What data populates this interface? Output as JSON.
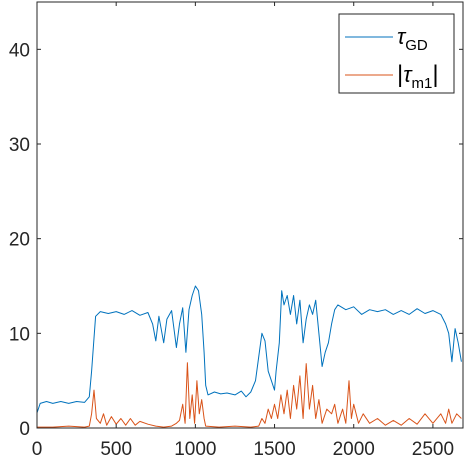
{
  "chart_data": {
    "type": "line",
    "xlim": [
      0,
      2690
    ],
    "ylim": [
      0,
      45
    ],
    "x_ticks": [
      "0",
      "500",
      "1000",
      "1500",
      "2000",
      "2500"
    ],
    "x_tick_values": [
      0,
      500,
      1000,
      1500,
      2000,
      2500
    ],
    "y_ticks": [
      "0",
      "10",
      "20",
      "30",
      "40"
    ],
    "y_tick_values": [
      0,
      10,
      20,
      30,
      40
    ],
    "grid": false,
    "legend_position": "top-right",
    "series": [
      {
        "name": "τGD",
        "legend_symbol": "τ",
        "legend_subscript": "GD",
        "color": "#0072BD",
        "points": [
          [
            0,
            1.6
          ],
          [
            20,
            2.6
          ],
          [
            60,
            2.8
          ],
          [
            100,
            2.6
          ],
          [
            150,
            2.8
          ],
          [
            200,
            2.6
          ],
          [
            250,
            2.8
          ],
          [
            300,
            2.7
          ],
          [
            330,
            3.3
          ],
          [
            345,
            6.0
          ],
          [
            360,
            9.5
          ],
          [
            370,
            11.8
          ],
          [
            400,
            12.3
          ],
          [
            450,
            12.1
          ],
          [
            500,
            12.3
          ],
          [
            550,
            12.0
          ],
          [
            600,
            12.4
          ],
          [
            650,
            11.9
          ],
          [
            700,
            12.2
          ],
          [
            730,
            11.0
          ],
          [
            750,
            9.2
          ],
          [
            770,
            11.8
          ],
          [
            800,
            9.0
          ],
          [
            820,
            11.5
          ],
          [
            850,
            12.4
          ],
          [
            880,
            8.5
          ],
          [
            900,
            11.0
          ],
          [
            920,
            12.7
          ],
          [
            940,
            8.0
          ],
          [
            960,
            12.5
          ],
          [
            980,
            14.0
          ],
          [
            1000,
            15.0
          ],
          [
            1020,
            14.5
          ],
          [
            1040,
            12.0
          ],
          [
            1055,
            8.0
          ],
          [
            1065,
            4.5
          ],
          [
            1080,
            3.5
          ],
          [
            1120,
            3.8
          ],
          [
            1160,
            3.6
          ],
          [
            1200,
            3.7
          ],
          [
            1250,
            3.5
          ],
          [
            1290,
            3.9
          ],
          [
            1320,
            3.3
          ],
          [
            1350,
            3.8
          ],
          [
            1380,
            5.0
          ],
          [
            1400,
            7.5
          ],
          [
            1420,
            10.0
          ],
          [
            1440,
            9.2
          ],
          [
            1460,
            6.0
          ],
          [
            1480,
            5.0
          ],
          [
            1500,
            4.0
          ],
          [
            1510,
            6.0
          ],
          [
            1530,
            9.0
          ],
          [
            1545,
            14.5
          ],
          [
            1560,
            13.0
          ],
          [
            1580,
            14.0
          ],
          [
            1600,
            12.0
          ],
          [
            1620,
            14.0
          ],
          [
            1640,
            11.0
          ],
          [
            1660,
            13.5
          ],
          [
            1680,
            9.0
          ],
          [
            1700,
            11.5
          ],
          [
            1720,
            13.0
          ],
          [
            1740,
            12.0
          ],
          [
            1760,
            13.5
          ],
          [
            1780,
            10.0
          ],
          [
            1800,
            6.5
          ],
          [
            1820,
            8.0
          ],
          [
            1840,
            9.0
          ],
          [
            1860,
            11.0
          ],
          [
            1880,
            12.5
          ],
          [
            1900,
            13.0
          ],
          [
            1950,
            12.5
          ],
          [
            2000,
            12.8
          ],
          [
            2050,
            12.0
          ],
          [
            2100,
            12.5
          ],
          [
            2150,
            12.3
          ],
          [
            2200,
            12.5
          ],
          [
            2250,
            12.0
          ],
          [
            2300,
            12.4
          ],
          [
            2350,
            12.0
          ],
          [
            2400,
            12.6
          ],
          [
            2450,
            12.1
          ],
          [
            2500,
            12.4
          ],
          [
            2550,
            12.0
          ],
          [
            2580,
            11.0
          ],
          [
            2600,
            10.0
          ],
          [
            2620,
            7.0
          ],
          [
            2640,
            10.5
          ],
          [
            2660,
            9.0
          ],
          [
            2680,
            7.0
          ]
        ]
      },
      {
        "name": "|τm1|",
        "legend_symbol": "τ",
        "legend_subscript": "m1",
        "legend_abs": true,
        "color": "#D95319",
        "points": [
          [
            0,
            0.1
          ],
          [
            100,
            0.1
          ],
          [
            200,
            0.2
          ],
          [
            300,
            0.1
          ],
          [
            330,
            0.2
          ],
          [
            345,
            1.5
          ],
          [
            360,
            4.0
          ],
          [
            375,
            1.0
          ],
          [
            400,
            0.5
          ],
          [
            420,
            1.5
          ],
          [
            440,
            0.3
          ],
          [
            470,
            1.2
          ],
          [
            500,
            0.4
          ],
          [
            530,
            1.0
          ],
          [
            560,
            0.3
          ],
          [
            590,
            1.0
          ],
          [
            620,
            0.3
          ],
          [
            650,
            0.7
          ],
          [
            700,
            0.4
          ],
          [
            750,
            0.2
          ],
          [
            800,
            0.1
          ],
          [
            850,
            0.2
          ],
          [
            880,
            0.5
          ],
          [
            900,
            0.8
          ],
          [
            920,
            2.5
          ],
          [
            935,
            0.5
          ],
          [
            950,
            6.9
          ],
          [
            965,
            1.0
          ],
          [
            980,
            3.5
          ],
          [
            995,
            0.5
          ],
          [
            1010,
            5.0
          ],
          [
            1025,
            1.5
          ],
          [
            1040,
            3.0
          ],
          [
            1055,
            1.0
          ],
          [
            1065,
            0.2
          ],
          [
            1150,
            0.1
          ],
          [
            1250,
            0.2
          ],
          [
            1350,
            0.1
          ],
          [
            1400,
            0.2
          ],
          [
            1420,
            1.0
          ],
          [
            1440,
            0.5
          ],
          [
            1460,
            2.0
          ],
          [
            1480,
            1.0
          ],
          [
            1500,
            2.5
          ],
          [
            1520,
            1.0
          ],
          [
            1540,
            3.5
          ],
          [
            1560,
            1.5
          ],
          [
            1580,
            4.0
          ],
          [
            1600,
            1.0
          ],
          [
            1620,
            4.5
          ],
          [
            1640,
            2.0
          ],
          [
            1660,
            5.5
          ],
          [
            1680,
            1.0
          ],
          [
            1700,
            6.8
          ],
          [
            1720,
            2.0
          ],
          [
            1740,
            4.5
          ],
          [
            1760,
            1.0
          ],
          [
            1780,
            3.0
          ],
          [
            1800,
            0.5
          ],
          [
            1830,
            2.0
          ],
          [
            1860,
            1.5
          ],
          [
            1880,
            2.5
          ],
          [
            1900,
            0.5
          ],
          [
            1930,
            2.0
          ],
          [
            1950,
            0.5
          ],
          [
            1970,
            5.0
          ],
          [
            1985,
            1.0
          ],
          [
            2000,
            2.5
          ],
          [
            2030,
            0.5
          ],
          [
            2060,
            1.5
          ],
          [
            2100,
            0.5
          ],
          [
            2150,
            1.0
          ],
          [
            2200,
            0.3
          ],
          [
            2250,
            0.8
          ],
          [
            2300,
            0.3
          ],
          [
            2350,
            1.0
          ],
          [
            2400,
            0.4
          ],
          [
            2450,
            1.5
          ],
          [
            2500,
            0.5
          ],
          [
            2550,
            1.5
          ],
          [
            2580,
            0.5
          ],
          [
            2600,
            2.0
          ],
          [
            2620,
            0.5
          ],
          [
            2650,
            1.5
          ],
          [
            2680,
            1.0
          ]
        ]
      }
    ]
  }
}
